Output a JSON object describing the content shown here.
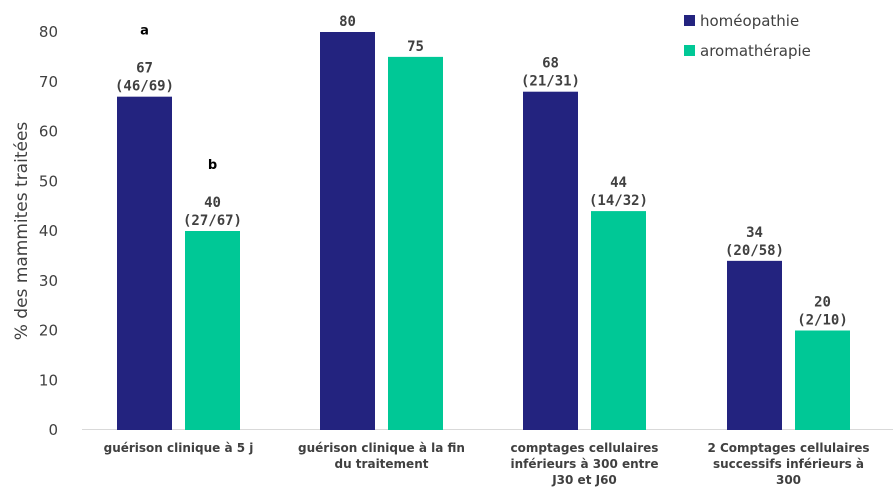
{
  "chart_data": {
    "type": "bar",
    "ylabel": "% des mammites traitées",
    "ylim": [
      0,
      80
    ],
    "yticks": [
      "0",
      "10",
      "20",
      "30",
      "40",
      "50",
      "60",
      "70",
      "80"
    ],
    "grid": false,
    "legend_position": "top-right",
    "categories": [
      [
        "guérison clinique à 5 j"
      ],
      [
        "guérison clinique à la fin",
        "du traitement"
      ],
      [
        "comptages cellulaires",
        "inférieurs à 300 entre",
        "J30 et J60"
      ],
      [
        "2 Comptages cellulaires",
        "successifs inférieurs à",
        "300"
      ]
    ],
    "series": [
      {
        "name": "homéopathie",
        "color": "#23237f",
        "values": [
          67,
          80,
          68,
          34
        ],
        "labels": [
          [
            "67",
            "(46/69)"
          ],
          [
            "80"
          ],
          [
            "68",
            "(21/31)"
          ],
          [
            "34",
            "(20/58)"
          ]
        ]
      },
      {
        "name": "aromathérapie",
        "color": "#00c896",
        "values": [
          40,
          75,
          44,
          20
        ],
        "labels": [
          [
            "40",
            "(27/67)"
          ],
          [
            "75"
          ],
          [
            "44",
            "(14/32)"
          ],
          [
            "20",
            "(2/10)"
          ]
        ]
      }
    ],
    "annotations": [
      {
        "text": "a",
        "category": 0,
        "series": 0
      },
      {
        "text": "b",
        "category": 0,
        "series": 1
      }
    ]
  }
}
